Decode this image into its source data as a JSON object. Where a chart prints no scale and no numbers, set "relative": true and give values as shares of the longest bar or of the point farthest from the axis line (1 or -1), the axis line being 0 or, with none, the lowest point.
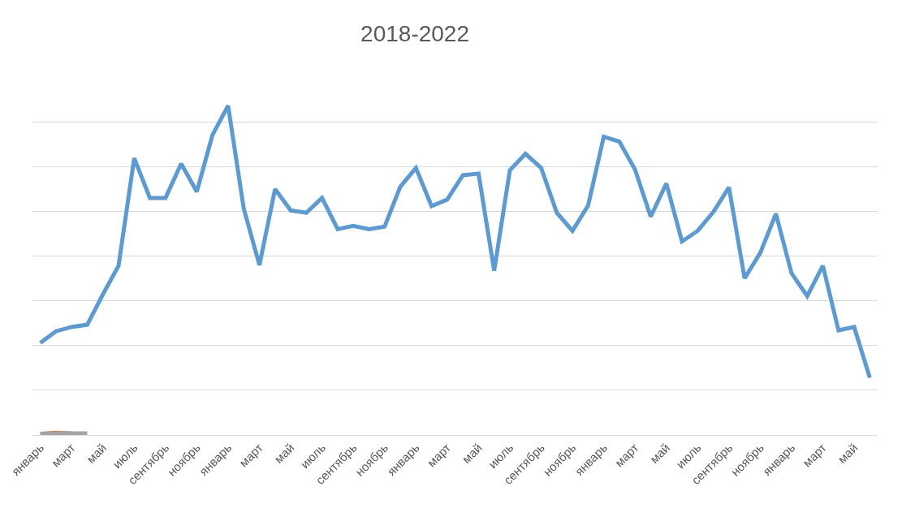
{
  "chart_data": {
    "type": "line",
    "title": "2018-2022",
    "relative": true,
    "grid": "y",
    "marker": "none",
    "line_style": "solid",
    "categories": [
      "январь",
      null,
      "март",
      null,
      "май",
      null,
      "июль",
      null,
      "сентябрь",
      null,
      "ноябрь",
      null,
      "январь",
      null,
      "март",
      null,
      "май",
      null,
      "июль",
      null,
      "сентябрь",
      null,
      "ноябрь",
      null,
      "январь",
      null,
      "март",
      null,
      "май",
      null,
      "июль",
      null,
      "сентябрь",
      null,
      "ноябрь",
      null,
      "январь",
      null,
      "март",
      null,
      "май",
      null,
      "июль",
      null,
      "сентябрь",
      null,
      "ноябрь",
      null,
      "январь",
      null,
      "март",
      null,
      "май",
      null
    ],
    "series": [
      {
        "color": "#5b9bd5",
        "values": [
          0.28,
          0.315,
          0.328,
          0.335,
          0.427,
          0.514,
          0.841,
          0.72,
          0.72,
          0.824,
          0.739,
          0.911,
          1,
          0.687,
          0.516,
          0.747,
          0.682,
          0.675,
          0.72,
          0.625,
          0.635,
          0.625,
          0.633,
          0.754,
          0.811,
          0.695,
          0.715,
          0.789,
          0.794,
          0.499,
          0.804,
          0.854,
          0.811,
          0.675,
          0.62,
          0.697,
          0.906,
          0.891,
          0.806,
          0.663,
          0.764,
          0.588,
          0.62,
          0.677,
          0.752,
          0.476,
          0.553,
          0.672,
          0.491,
          0.422,
          0.514,
          0.318,
          0.328,
          0.174
        ]
      },
      {
        "color": "#ed7d31",
        "values": [
          0.004,
          0.007,
          0.005,
          null,
          null,
          null,
          null,
          null,
          null,
          null,
          null,
          null,
          null,
          null,
          null,
          null,
          null,
          null,
          null,
          null,
          null,
          null,
          null,
          null,
          null,
          null,
          null,
          null,
          null,
          null,
          null,
          null,
          null,
          null,
          null,
          null,
          null,
          null,
          null,
          null,
          null,
          null,
          null,
          null,
          null,
          null,
          null,
          null,
          null,
          null,
          null,
          null,
          null,
          null
        ]
      },
      {
        "color": "#a5a5a5",
        "values": [
          0.003,
          0.004,
          0.005,
          0.005,
          null,
          null,
          null,
          null,
          null,
          null,
          null,
          null,
          null,
          null,
          null,
          null,
          null,
          null,
          null,
          null,
          null,
          null,
          null,
          null,
          null,
          null,
          null,
          null,
          null,
          null,
          null,
          null,
          null,
          null,
          null,
          null,
          null,
          null,
          null,
          null,
          null,
          null,
          null,
          null,
          null,
          null,
          null,
          null,
          null,
          null,
          null,
          null,
          null,
          null
        ]
      }
    ]
  }
}
